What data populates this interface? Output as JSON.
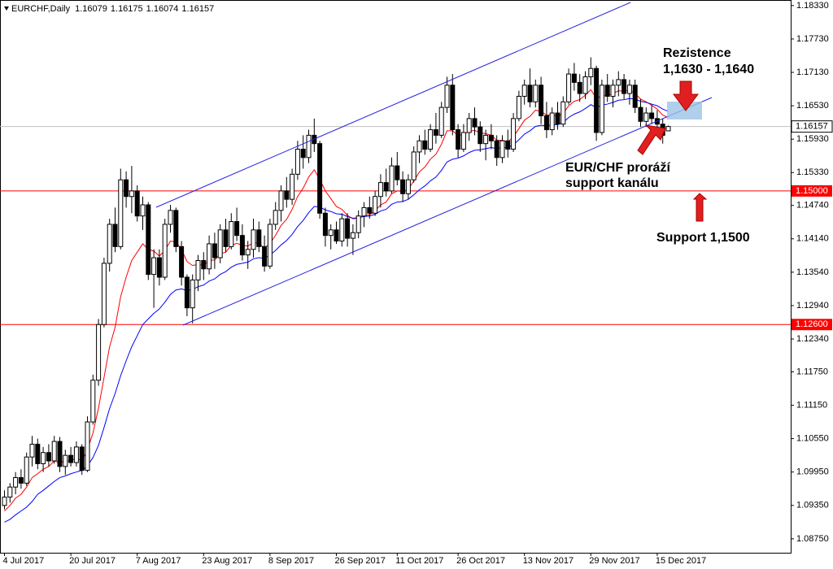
{
  "chart_data": {
    "type": "candlestick",
    "title": "EURCHF,Daily",
    "x": [
      "4 Jul 2017",
      "5 Jul 2017",
      "6 Jul 2017",
      "7 Jul 2017",
      "10 Jul 2017",
      "11 Jul 2017",
      "12 Jul 2017",
      "13 Jul 2017",
      "14 Jul 2017",
      "17 Jul 2017",
      "18 Jul 2017",
      "19 Jul 2017",
      "20 Jul 2017",
      "21 Jul 2017",
      "24 Jul 2017",
      "25 Jul 2017",
      "26 Jul 2017",
      "27 Jul 2017",
      "28 Jul 2017",
      "31 Jul 2017",
      "1 Aug 2017",
      "2 Aug 2017",
      "3 Aug 2017",
      "4 Aug 2017",
      "7 Aug 2017",
      "8 Aug 2017",
      "9 Aug 2017",
      "10 Aug 2017",
      "11 Aug 2017",
      "14 Aug 2017",
      "15 Aug 2017",
      "16 Aug 2017",
      "17 Aug 2017",
      "18 Aug 2017",
      "21 Aug 2017",
      "22 Aug 2017",
      "23 Aug 2017",
      "24 Aug 2017",
      "25 Aug 2017",
      "28 Aug 2017",
      "29 Aug 2017",
      "30 Aug 2017",
      "31 Aug 2017",
      "1 Sep 2017",
      "4 Sep 2017",
      "5 Sep 2017",
      "6 Sep 2017",
      "7 Sep 2017",
      "8 Sep 2017",
      "11 Sep 2017",
      "12 Sep 2017",
      "13 Sep 2017",
      "14 Sep 2017",
      "15 Sep 2017",
      "18 Sep 2017",
      "19 Sep 2017",
      "20 Sep 2017",
      "21 Sep 2017",
      "22 Sep 2017",
      "25 Sep 2017",
      "26 Sep 2017",
      "27 Sep 2017",
      "28 Sep 2017",
      "29 Sep 2017",
      "2 Oct 2017",
      "3 Oct 2017",
      "4 Oct 2017",
      "5 Oct 2017",
      "6 Oct 2017",
      "9 Oct 2017",
      "10 Oct 2017",
      "11 Oct 2017",
      "12 Oct 2017",
      "13 Oct 2017",
      "16 Oct 2017",
      "17 Oct 2017",
      "18 Oct 2017",
      "19 Oct 2017",
      "20 Oct 2017",
      "23 Oct 2017",
      "24 Oct 2017",
      "25 Oct 2017",
      "26 Oct 2017",
      "27 Oct 2017",
      "30 Oct 2017",
      "31 Oct 2017",
      "1 Nov 2017",
      "2 Nov 2017",
      "3 Nov 2017",
      "6 Nov 2017",
      "7 Nov 2017",
      "8 Nov 2017",
      "9 Nov 2017",
      "10 Nov 2017",
      "13 Nov 2017",
      "14 Nov 2017",
      "15 Nov 2017",
      "16 Nov 2017",
      "17 Nov 2017",
      "20 Nov 2017",
      "21 Nov 2017",
      "22 Nov 2017",
      "23 Nov 2017",
      "24 Nov 2017",
      "27 Nov 2017",
      "28 Nov 2017",
      "29 Nov 2017",
      "30 Nov 2017",
      "1 Dec 2017",
      "4 Dec 2017",
      "5 Dec 2017",
      "6 Dec 2017",
      "7 Dec 2017",
      "8 Dec 2017",
      "11 Dec 2017",
      "12 Dec 2017",
      "13 Dec 2017",
      "14 Dec 2017",
      "15 Dec 2017",
      "18 Dec 2017",
      "19 Dec 2017"
    ],
    "ohlc": [
      [
        1.0935,
        1.0962,
        1.0928,
        1.095
      ],
      [
        1.095,
        1.0975,
        1.094,
        1.0968
      ],
      [
        1.0968,
        1.0995,
        1.0955,
        1.0985
      ],
      [
        1.0985,
        1.1,
        1.0965,
        1.0975
      ],
      [
        1.0975,
        1.103,
        1.097,
        1.1022
      ],
      [
        1.1022,
        1.106,
        1.1005,
        1.1045
      ],
      [
        1.1045,
        1.1055,
        1.1,
        1.101
      ],
      [
        1.101,
        1.104,
        1.0995,
        1.103
      ],
      [
        1.103,
        1.1045,
        1.1005,
        1.1015
      ],
      [
        1.1015,
        1.106,
        1.101,
        1.105
      ],
      [
        1.105,
        1.1058,
        1.0995,
        1.1005
      ],
      [
        1.1005,
        1.1035,
        1.099,
        1.1025
      ],
      [
        1.1025,
        1.104,
        1.1005,
        1.1012
      ],
      [
        1.1012,
        1.105,
        1.1005,
        1.104
      ],
      [
        1.104,
        1.1045,
        1.099,
        1.0998
      ],
      [
        1.0998,
        1.1095,
        1.0995,
        1.1085
      ],
      [
        1.1085,
        1.117,
        1.108,
        1.116
      ],
      [
        1.116,
        1.127,
        1.115,
        1.126
      ],
      [
        1.126,
        1.138,
        1.1255,
        1.137
      ],
      [
        1.137,
        1.145,
        1.1355,
        1.144
      ],
      [
        1.144,
        1.147,
        1.139,
        1.14
      ],
      [
        1.14,
        1.154,
        1.1395,
        1.152
      ],
      [
        1.152,
        1.1535,
        1.147,
        1.149
      ],
      [
        1.149,
        1.1545,
        1.146,
        1.15
      ],
      [
        1.15,
        1.151,
        1.1445,
        1.1455
      ],
      [
        1.1455,
        1.149,
        1.143,
        1.1475
      ],
      [
        1.1475,
        1.148,
        1.134,
        1.135
      ],
      [
        1.135,
        1.1395,
        1.129,
        1.138
      ],
      [
        1.138,
        1.1395,
        1.133,
        1.1345
      ],
      [
        1.1345,
        1.145,
        1.134,
        1.144
      ],
      [
        1.144,
        1.1475,
        1.1425,
        1.1465
      ],
      [
        1.1465,
        1.147,
        1.139,
        1.14
      ],
      [
        1.14,
        1.141,
        1.133,
        1.1345
      ],
      [
        1.1345,
        1.135,
        1.1275,
        1.129
      ],
      [
        1.129,
        1.135,
        1.1262,
        1.134
      ],
      [
        1.134,
        1.1385,
        1.132,
        1.1375
      ],
      [
        1.1375,
        1.139,
        1.134,
        1.136
      ],
      [
        1.136,
        1.142,
        1.135,
        1.1405
      ],
      [
        1.1405,
        1.1425,
        1.136,
        1.138
      ],
      [
        1.138,
        1.144,
        1.137,
        1.143
      ],
      [
        1.143,
        1.145,
        1.139,
        1.14
      ],
      [
        1.14,
        1.146,
        1.1395,
        1.1445
      ],
      [
        1.1445,
        1.147,
        1.141,
        1.142
      ],
      [
        1.142,
        1.144,
        1.1375,
        1.1385
      ],
      [
        1.1385,
        1.141,
        1.136,
        1.1395
      ],
      [
        1.1395,
        1.145,
        1.138,
        1.143
      ],
      [
        1.143,
        1.1445,
        1.139,
        1.14
      ],
      [
        1.14,
        1.142,
        1.1355,
        1.1365
      ],
      [
        1.1365,
        1.145,
        1.136,
        1.144
      ],
      [
        1.144,
        1.148,
        1.143,
        1.1465
      ],
      [
        1.1465,
        1.151,
        1.1445,
        1.15
      ],
      [
        1.15,
        1.1525,
        1.147,
        1.1485
      ],
      [
        1.1485,
        1.154,
        1.1475,
        1.153
      ],
      [
        1.153,
        1.159,
        1.152,
        1.1575
      ],
      [
        1.1575,
        1.16,
        1.154,
        1.156
      ],
      [
        1.156,
        1.161,
        1.155,
        1.16
      ],
      [
        1.16,
        1.163,
        1.157,
        1.1585
      ],
      [
        1.1585,
        1.159,
        1.145,
        1.146
      ],
      [
        1.146,
        1.147,
        1.14,
        1.142
      ],
      [
        1.142,
        1.144,
        1.1395,
        1.143
      ],
      [
        1.143,
        1.1445,
        1.1405,
        1.141
      ],
      [
        1.141,
        1.146,
        1.14,
        1.145
      ],
      [
        1.145,
        1.146,
        1.14,
        1.1415
      ],
      [
        1.1415,
        1.144,
        1.1385,
        1.1425
      ],
      [
        1.1425,
        1.1465,
        1.1415,
        1.1455
      ],
      [
        1.1455,
        1.148,
        1.1435,
        1.147
      ],
      [
        1.147,
        1.149,
        1.145,
        1.146
      ],
      [
        1.146,
        1.15,
        1.1455,
        1.149
      ],
      [
        1.149,
        1.153,
        1.147,
        1.1515
      ],
      [
        1.1515,
        1.154,
        1.149,
        1.15
      ],
      [
        1.15,
        1.156,
        1.1495,
        1.1545
      ],
      [
        1.1545,
        1.157,
        1.151,
        1.152
      ],
      [
        1.152,
        1.1535,
        1.148,
        1.1495
      ],
      [
        1.1495,
        1.153,
        1.1485,
        1.152
      ],
      [
        1.152,
        1.158,
        1.1515,
        1.157
      ],
      [
        1.157,
        1.16,
        1.155,
        1.159
      ],
      [
        1.159,
        1.161,
        1.1565,
        1.1575
      ],
      [
        1.1575,
        1.162,
        1.157,
        1.161
      ],
      [
        1.161,
        1.164,
        1.1585,
        1.16
      ],
      [
        1.16,
        1.166,
        1.1595,
        1.165
      ],
      [
        1.165,
        1.1705,
        1.164,
        1.169
      ],
      [
        1.169,
        1.171,
        1.16,
        1.161
      ],
      [
        1.161,
        1.162,
        1.156,
        1.1575
      ],
      [
        1.1575,
        1.162,
        1.157,
        1.1605
      ],
      [
        1.1605,
        1.164,
        1.159,
        1.163
      ],
      [
        1.163,
        1.165,
        1.16,
        1.1615
      ],
      [
        1.1615,
        1.1625,
        1.157,
        1.1585
      ],
      [
        1.1585,
        1.161,
        1.1555,
        1.16
      ],
      [
        1.16,
        1.162,
        1.1575,
        1.159
      ],
      [
        1.159,
        1.16,
        1.1545,
        1.156
      ],
      [
        1.156,
        1.16,
        1.155,
        1.159
      ],
      [
        1.159,
        1.161,
        1.156,
        1.1575
      ],
      [
        1.1575,
        1.164,
        1.157,
        1.163
      ],
      [
        1.163,
        1.168,
        1.1625,
        1.167
      ],
      [
        1.167,
        1.17,
        1.1655,
        1.169
      ],
      [
        1.169,
        1.172,
        1.165,
        1.166
      ],
      [
        1.166,
        1.17,
        1.165,
        1.169
      ],
      [
        1.169,
        1.1705,
        1.162,
        1.1635
      ],
      [
        1.1635,
        1.166,
        1.1595,
        1.161
      ],
      [
        1.161,
        1.165,
        1.16,
        1.164
      ],
      [
        1.164,
        1.166,
        1.161,
        1.162
      ],
      [
        1.162,
        1.167,
        1.1615,
        1.166
      ],
      [
        1.166,
        1.172,
        1.1655,
        1.171
      ],
      [
        1.171,
        1.173,
        1.168,
        1.1695
      ],
      [
        1.1695,
        1.171,
        1.166,
        1.1675
      ],
      [
        1.1675,
        1.1715,
        1.1665,
        1.1705
      ],
      [
        1.1705,
        1.174,
        1.169,
        1.172
      ],
      [
        1.172,
        1.1725,
        1.159,
        1.1605
      ],
      [
        1.1605,
        1.17,
        1.16,
        1.169
      ],
      [
        1.169,
        1.171,
        1.166,
        1.167
      ],
      [
        1.167,
        1.17,
        1.165,
        1.169
      ],
      [
        1.169,
        1.1715,
        1.167,
        1.17
      ],
      [
        1.17,
        1.171,
        1.1665,
        1.1675
      ],
      [
        1.1675,
        1.17,
        1.1655,
        1.169
      ],
      [
        1.169,
        1.17,
        1.164,
        1.165
      ],
      [
        1.165,
        1.1665,
        1.1615,
        1.1625
      ],
      [
        1.1625,
        1.165,
        1.1615,
        1.164
      ],
      [
        1.164,
        1.1655,
        1.162,
        1.163
      ],
      [
        1.163,
        1.1645,
        1.161,
        1.162
      ],
      [
        1.162,
        1.163,
        1.1585,
        1.16
      ],
      [
        1.16079,
        1.16175,
        1.16074,
        1.16157
      ]
    ],
    "overlays": [
      {
        "color": "#ff0000",
        "values": [
          1.0925,
          1.0935,
          1.0948,
          1.0955,
          1.0968,
          1.0985,
          1.0992,
          1.1,
          1.1005,
          1.1015,
          1.1012,
          1.1015,
          1.1015,
          1.102,
          1.1015,
          1.1035,
          1.1065,
          1.111,
          1.1165,
          1.122,
          1.1255,
          1.131,
          1.1345,
          1.1375,
          1.139,
          1.1405,
          1.1395,
          1.1392,
          1.1383,
          1.1393,
          1.141,
          1.1408,
          1.1395,
          1.1373,
          1.1366,
          1.1368,
          1.1366,
          1.1375,
          1.1376,
          1.1387,
          1.139,
          1.1402,
          1.1406,
          1.1402,
          1.1401,
          1.1407,
          1.1406,
          1.1397,
          1.1406,
          1.142,
          1.1438,
          1.1449,
          1.1467,
          1.149,
          1.1505,
          1.1525,
          1.1538,
          1.1521,
          1.15,
          1.1486,
          1.1472,
          1.1467,
          1.1456,
          1.145,
          1.1451,
          1.1456,
          1.1457,
          1.1464,
          1.1475,
          1.148,
          1.1495,
          1.15,
          1.1499,
          1.1503,
          1.1518,
          1.1534,
          1.1543,
          1.1557,
          1.1566,
          1.1584,
          1.1608,
          1.1608,
          1.16,
          1.1601,
          1.1607,
          1.1609,
          1.1604,
          1.1603,
          1.16,
          1.1591,
          1.1591,
          1.1588,
          1.1597,
          1.1612,
          1.1627,
          1.1634,
          1.1645,
          1.1643,
          1.1636,
          1.1637,
          1.1634,
          1.1639,
          1.1653,
          1.1661,
          1.1664,
          1.1672,
          1.1682,
          1.1666,
          1.1671,
          1.1671,
          1.1675,
          1.168,
          1.1679,
          1.1681,
          1.1675,
          1.1665,
          1.166,
          1.1654,
          1.1647,
          1.1636,
          1.1632
        ]
      },
      {
        "color": "#0000ff",
        "values": [
          1.0905,
          1.091,
          1.0918,
          1.0925,
          1.0932,
          1.0942,
          1.0955,
          1.0962,
          1.097,
          1.0978,
          1.0985,
          1.0988,
          1.0992,
          1.0995,
          1.0998,
          1.1006,
          1.1021,
          1.1043,
          1.1075,
          1.1109,
          1.1136,
          1.1168,
          1.1195,
          1.122,
          1.124,
          1.126,
          1.127,
          1.128,
          1.1288,
          1.13,
          1.1314,
          1.1322,
          1.1324,
          1.1321,
          1.1323,
          1.1328,
          1.1331,
          1.1338,
          1.1342,
          1.135,
          1.1355,
          1.1363,
          1.1368,
          1.137,
          1.1372,
          1.1378,
          1.138,
          1.1379,
          1.1385,
          1.1393,
          1.1403,
          1.1411,
          1.1422,
          1.1436,
          1.1447,
          1.1461,
          1.1472,
          1.1471,
          1.1466,
          1.1463,
          1.1459,
          1.1458,
          1.1454,
          1.1451,
          1.1452,
          1.1454,
          1.1455,
          1.1458,
          1.1464,
          1.1467,
          1.1476,
          1.148,
          1.1481,
          1.1485,
          1.1493,
          1.1502,
          1.1509,
          1.1518,
          1.1525,
          1.1537,
          1.1552,
          1.1557,
          1.1559,
          1.1563,
          1.1569,
          1.1573,
          1.1574,
          1.1576,
          1.1578,
          1.1576,
          1.1578,
          1.1578,
          1.1583,
          1.1592,
          1.1602,
          1.1608,
          1.1616,
          1.1618,
          1.1617,
          1.1619,
          1.1619,
          1.1623,
          1.1632,
          1.1638,
          1.1642,
          1.1648,
          1.1655,
          1.165,
          1.1654,
          1.1656,
          1.1659,
          1.1663,
          1.1664,
          1.1666,
          1.1665,
          1.1661,
          1.1659,
          1.1656,
          1.1653,
          1.1647,
          1.1643
        ]
      }
    ],
    "ylim": [
      1.085,
      1.1843
    ],
    "yticks": [
      {
        "value": 1.1833,
        "label": "1.18330"
      },
      {
        "value": 1.1773,
        "label": "1.17730"
      },
      {
        "value": 1.1713,
        "label": "1.17130"
      },
      {
        "value": 1.1653,
        "label": "1.16530"
      },
      {
        "value": 1.1593,
        "label": "1.15930"
      },
      {
        "value": 1.1533,
        "label": "1.15330"
      },
      {
        "value": 1.1474,
        "label": "1.14740"
      },
      {
        "value": 1.1414,
        "label": "1.14140"
      },
      {
        "value": 1.1354,
        "label": "1.13540"
      },
      {
        "value": 1.1294,
        "label": "1.12940"
      },
      {
        "value": 1.1234,
        "label": "1.12340"
      },
      {
        "value": 1.1175,
        "label": "1.11750"
      },
      {
        "value": 1.1115,
        "label": "1.11150"
      },
      {
        "value": 1.1055,
        "label": "1.10550"
      },
      {
        "value": 1.0995,
        "label": "1.09950"
      },
      {
        "value": 1.0935,
        "label": "1.09350"
      },
      {
        "value": 1.0875,
        "label": "1.08750"
      }
    ],
    "xticks": [
      "4 Jul 2017",
      "20 Jul 2017",
      "7 Aug 2017",
      "23 Aug 2017",
      "8 Sep 2017",
      "26 Sep 2017",
      "11 Oct 2017",
      "26 Oct 2017",
      "13 Nov 2017",
      "29 Nov 2017",
      "15 Dec 2017"
    ],
    "hlines": [
      {
        "value": 1.15,
        "label": "1.15000",
        "color": "#ff0000"
      },
      {
        "value": 1.126,
        "label": "1.12600",
        "color": "#ff0000"
      }
    ],
    "annotations": [
      "Rezistence",
      "1,1630 - 1,1640",
      "EUR/CHF proráží",
      "support kanálu",
      "Support 1,1500"
    ]
  }
}
